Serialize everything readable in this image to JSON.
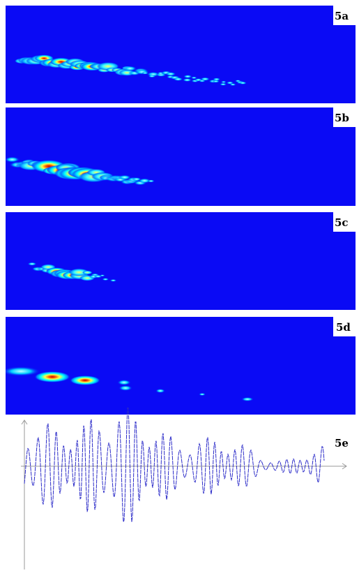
{
  "panels": [
    {
      "label": "5a"
    },
    {
      "label": "5b"
    },
    {
      "label": "5c"
    },
    {
      "label": "5d"
    },
    {
      "label": "5e"
    }
  ]
}
